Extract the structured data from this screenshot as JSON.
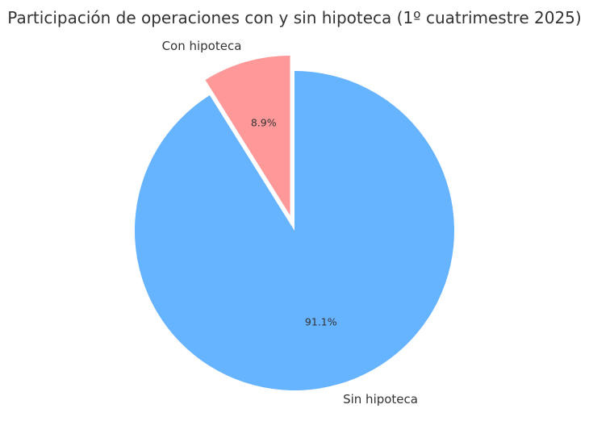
{
  "chart_data": {
    "type": "pie",
    "title": "Participación de operaciones con y sin hipoteca (1º cuatrimestre 2025)",
    "slices": [
      {
        "label": "Con hipoteca",
        "value": 8.9,
        "value_label": "8.9%",
        "color": "#ff9999",
        "exploded": true
      },
      {
        "label": "Sin hipoteca",
        "value": 91.1,
        "value_label": "91.1%",
        "color": "#66b3ff",
        "exploded": false
      }
    ],
    "start": "top",
    "direction": "counterclockwise"
  }
}
